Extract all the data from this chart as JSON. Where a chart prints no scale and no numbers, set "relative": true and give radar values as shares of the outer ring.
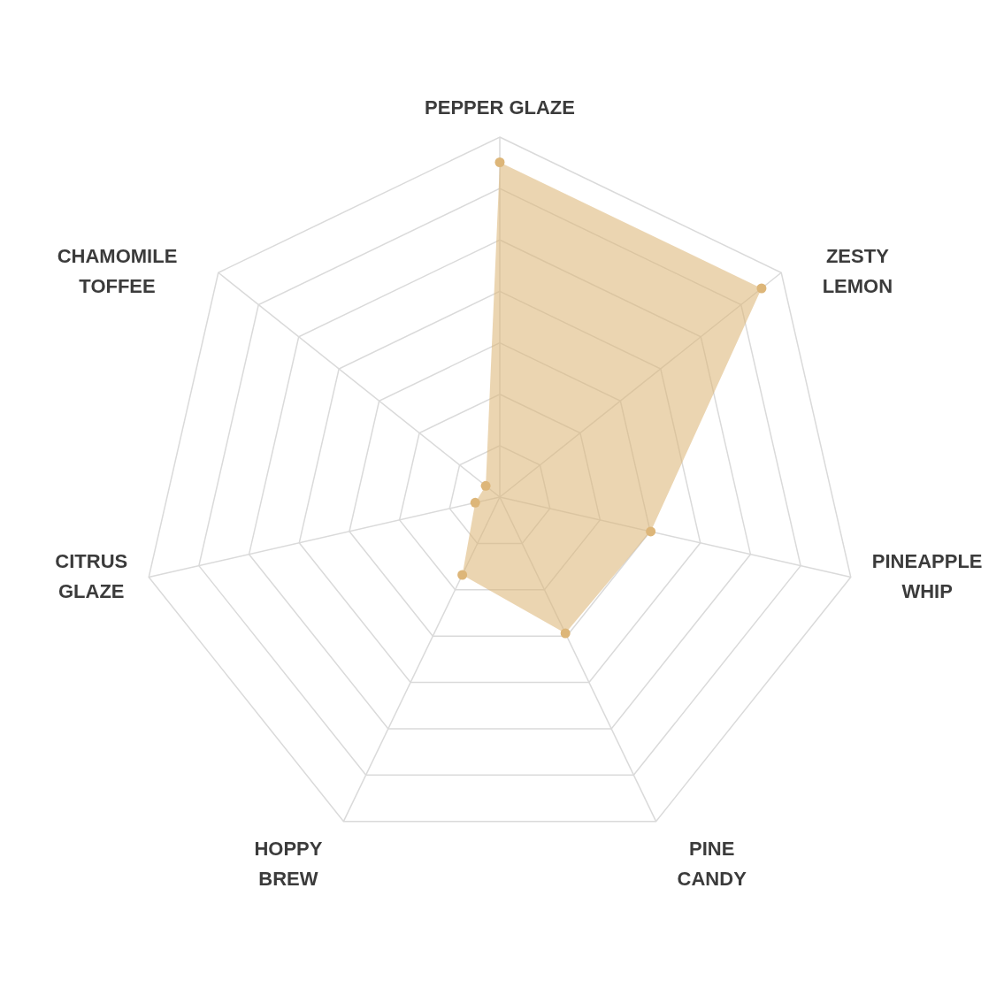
{
  "chart_data": {
    "type": "radar",
    "relative": true,
    "categories": [
      "PEPPER GLAZE",
      "ZESTY LEMON",
      "PINEAPPLE WHIP",
      "PINE CANDY",
      "HOPPY BREW",
      "CITRUS GLAZE",
      "CHAMOMILE TOFFEE"
    ],
    "series": [
      {
        "color": "#ddb679",
        "values": [
          0.93,
          0.93,
          0.43,
          0.42,
          0.24,
          0.07,
          0.05
        ]
      }
    ],
    "grid": true,
    "marker": "circle"
  }
}
